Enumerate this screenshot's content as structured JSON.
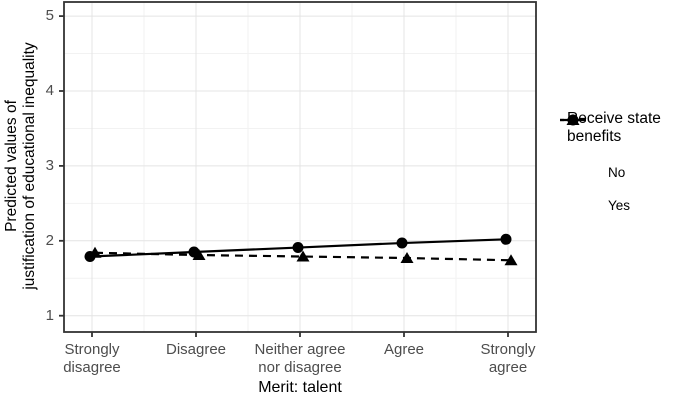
{
  "chart_data": {
    "type": "line",
    "title": "",
    "xlabel": "Merit: talent",
    "ylabel": "Predicted values of\njustification of educational inequality",
    "categories": [
      "Strongly\ndisagree",
      "Disagree",
      "Neither agree\nnor disagree",
      "Agree",
      "Strongly\nagree"
    ],
    "series": [
      {
        "name": "No",
        "marker": "circle",
        "linestyle": "solid",
        "values": [
          1.79,
          1.85,
          1.91,
          1.97,
          2.02
        ]
      },
      {
        "name": "Yes",
        "marker": "triangle",
        "linestyle": "dashed",
        "values": [
          1.84,
          1.81,
          1.79,
          1.77,
          1.74
        ]
      }
    ],
    "legend": {
      "title": "Receive state\nbenefits",
      "position": "right"
    },
    "yticks": [
      1,
      2,
      3,
      4,
      5
    ],
    "ylim": [
      0.8,
      5.2
    ],
    "grid": {
      "major": true,
      "minor": true
    },
    "colors": {
      "data": "#000000",
      "axis_text": "#4d4d4d",
      "axis_title": "#000000",
      "panel_border": "#333333",
      "tick_mark": "#333333",
      "grid_major": "#e4e4e4",
      "grid_minor": "#f2f2f2",
      "background": "#ffffff"
    }
  }
}
